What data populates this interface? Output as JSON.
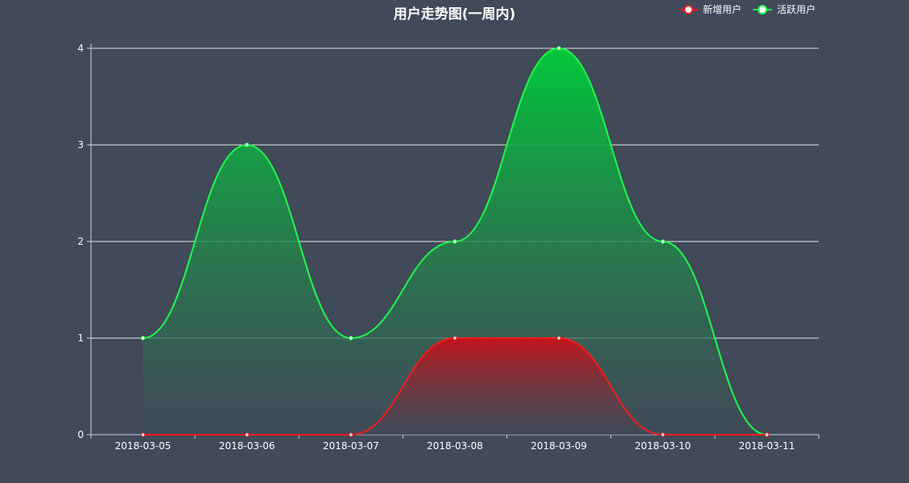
{
  "chart_data": {
    "type": "area",
    "title": "用户走势图(一周内)",
    "categories": [
      "2018-03-05",
      "2018-03-06",
      "2018-03-07",
      "2018-03-08",
      "2018-03-09",
      "2018-03-10",
      "2018-03-11"
    ],
    "ylim": [
      0,
      4
    ],
    "yticks": [
      0,
      1,
      2,
      3,
      4
    ],
    "grid": true,
    "smooth": true,
    "legend_position": "top-right",
    "series": [
      {
        "name": "新增用户",
        "values": [
          0,
          0,
          0,
          1,
          1,
          0,
          0
        ],
        "color": "#ff1a1a",
        "fill_top": "#c0141a",
        "fill_bottom": "#404a59"
      },
      {
        "name": "活跃用户",
        "values": [
          1,
          3,
          1,
          2,
          4,
          2,
          0
        ],
        "color": "#1dff4a",
        "fill_top": "#00c83a",
        "fill_bottom": "#404a59"
      }
    ]
  }
}
